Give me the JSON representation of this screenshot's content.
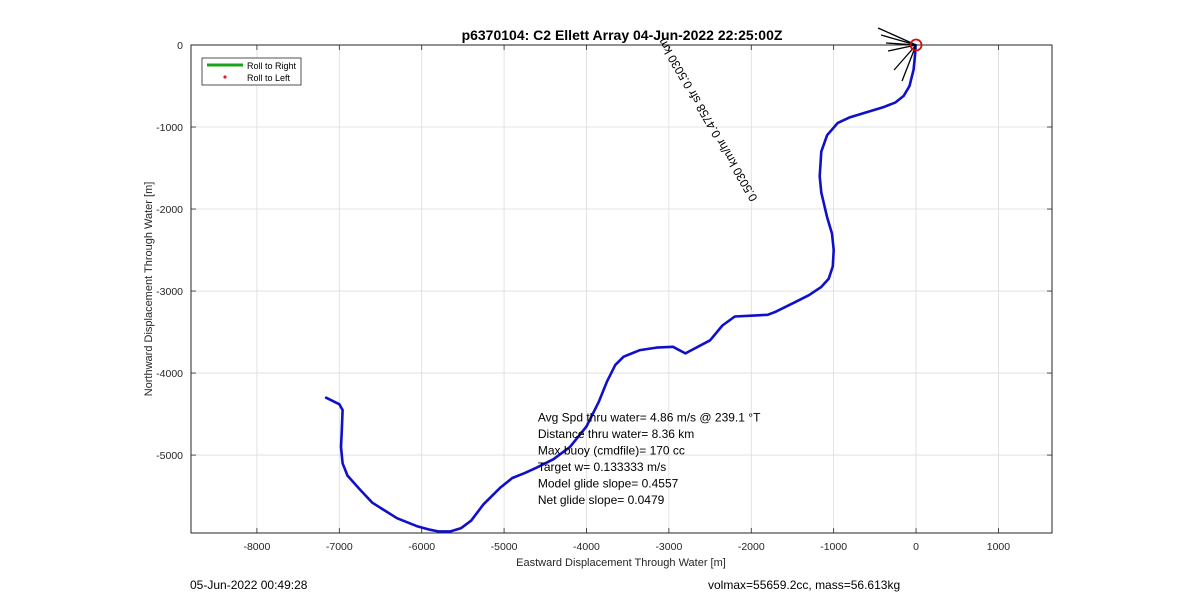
{
  "chart_data": {
    "type": "line",
    "title": "p6370104: C2 Ellett Array 04-Jun-2022 22:25:00Z",
    "xlabel": "Eastward Displacement Through Water [m]",
    "ylabel": "Northward Displacement Through Water [m]",
    "xlim": [
      -8800,
      1650
    ],
    "ylim": [
      -5950,
      0
    ],
    "xticks": [
      -8000,
      -7000,
      -6000,
      -5000,
      -4000,
      -3000,
      -2000,
      -1000,
      0,
      1000
    ],
    "yticks": [
      0,
      -1000,
      -2000,
      -3000,
      -4000,
      -5000
    ],
    "grid": true,
    "legend_position": "top-left",
    "legend": [
      {
        "label": "Roll to Right",
        "color": "#1aa31a",
        "style": "line"
      },
      {
        "label": "Roll to Left",
        "color": "#e02020",
        "style": "dot"
      }
    ],
    "series": [
      {
        "name": "track",
        "color": "#1010c8",
        "x": [
          -5,
          -10,
          -30,
          -80,
          -150,
          -250,
          -400,
          -600,
          -800,
          -950,
          -1080,
          -1150,
          -1170,
          -1150,
          -1080,
          -1020,
          -1000,
          -1010,
          -1060,
          -1150,
          -1300,
          -1500,
          -1700,
          -1800,
          -2000,
          -2200,
          -2350,
          -2500,
          -2800,
          -2950,
          -3150,
          -3350,
          -3550,
          -3650,
          -3750,
          -3850,
          -4000,
          -4200,
          -4400,
          -4600,
          -4750,
          -4900,
          -5050,
          -5250,
          -5400,
          -5520,
          -5650,
          -5800,
          -5900,
          -6050,
          -6300,
          -6600,
          -6750,
          -6900,
          -6960,
          -6980,
          -6970,
          -6960,
          -7000,
          -7060,
          -7160
        ],
        "y": [
          0,
          -100,
          -300,
          -500,
          -620,
          -700,
          -760,
          -820,
          -880,
          -950,
          -1100,
          -1300,
          -1600,
          -1800,
          -2100,
          -2300,
          -2500,
          -2700,
          -2850,
          -2950,
          -3050,
          -3150,
          -3250,
          -3290,
          -3300,
          -3310,
          -3420,
          -3600,
          -3760,
          -3680,
          -3690,
          -3720,
          -3800,
          -3900,
          -4100,
          -4350,
          -4650,
          -4900,
          -5050,
          -5150,
          -5220,
          -5280,
          -5400,
          -5600,
          -5800,
          -5890,
          -5930,
          -5930,
          -5910,
          -5870,
          -5770,
          -5580,
          -5420,
          -5250,
          -5100,
          -4900,
          -4700,
          -4450,
          -4380,
          -4350,
          -4300
        ]
      }
    ],
    "start_marker": {
      "x": 0,
      "y": 0,
      "color": "#d01010"
    },
    "annotations": [
      {
        "lines": [
          "Avg Spd thru water=  4.86 m/s @ 239.1 °T",
          "Distance thru water=  8.36 km",
          "Max buoy (cmdfile)= 170 cc",
          "Target w= 0.133333 m/s",
          "Model glide slope= 0.4557",
          "Net glide slope= 0.0479"
        ]
      },
      {
        "text": "0.5030 km/hr 0.4758 sfr 0.5030 km",
        "rotation_deg": 240,
        "anchor": {
          "x": -1920,
          "y": -1870
        }
      }
    ]
  },
  "footer": {
    "left": "05-Jun-2022 00:49:28",
    "right": "volmax=55659.2cc, mass=56.613kg"
  }
}
